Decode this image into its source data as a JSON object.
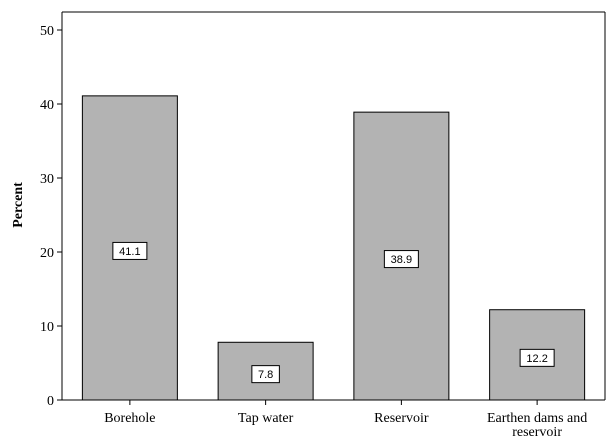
{
  "chart_data": {
    "type": "bar",
    "categories": [
      [
        "Borehole"
      ],
      [
        "Tap water"
      ],
      [
        "Reservoir"
      ],
      [
        "Earthen dams and",
        "reservoir"
      ]
    ],
    "values": [
      41.1,
      7.8,
      38.9,
      12.2
    ],
    "data_labels": [
      "41.1",
      "7.8",
      "38.9",
      "12.2"
    ],
    "ylabel": "Percent",
    "xlabel": "",
    "ylim": [
      0,
      50
    ],
    "yticks": [
      0,
      10,
      20,
      30,
      40,
      50
    ],
    "grid": false,
    "colors": {
      "bar": "#b3b3b3",
      "outline": "#000000"
    }
  }
}
